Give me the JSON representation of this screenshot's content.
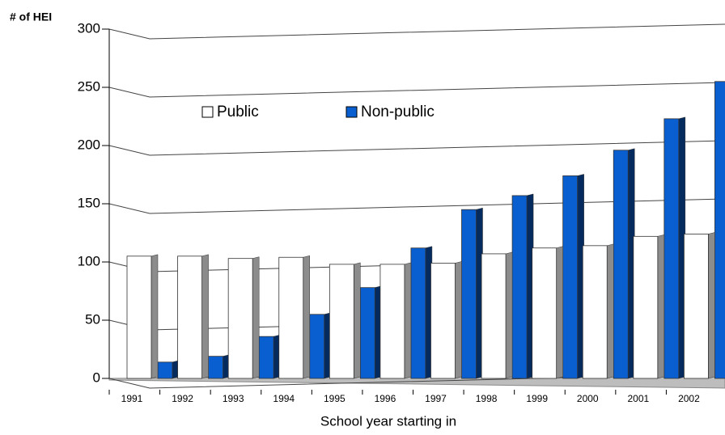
{
  "chart_data": {
    "type": "bar3d",
    "y_label": "# of HEI",
    "x_label": "School year starting in",
    "categories": [
      "1991",
      "1992",
      "1993",
      "1994",
      "1995",
      "1996",
      "1997",
      "1998",
      "1999",
      "2000",
      "2001",
      "2002"
    ],
    "series": [
      {
        "name": "Public",
        "color": "#ffffff",
        "values": [
          105,
          105,
          103,
          104,
          98,
          98,
          99,
          107,
          112,
          114,
          122,
          124
        ]
      },
      {
        "name": "Non-public",
        "color": "#0a5fd0",
        "values": [
          14,
          19,
          36,
          55,
          78,
          112,
          145,
          157,
          174,
          196,
          223,
          255
        ]
      }
    ],
    "ylim": [
      0,
      300
    ],
    "yticks": [
      0,
      50,
      100,
      150,
      200,
      250,
      300
    ],
    "grid": true
  }
}
